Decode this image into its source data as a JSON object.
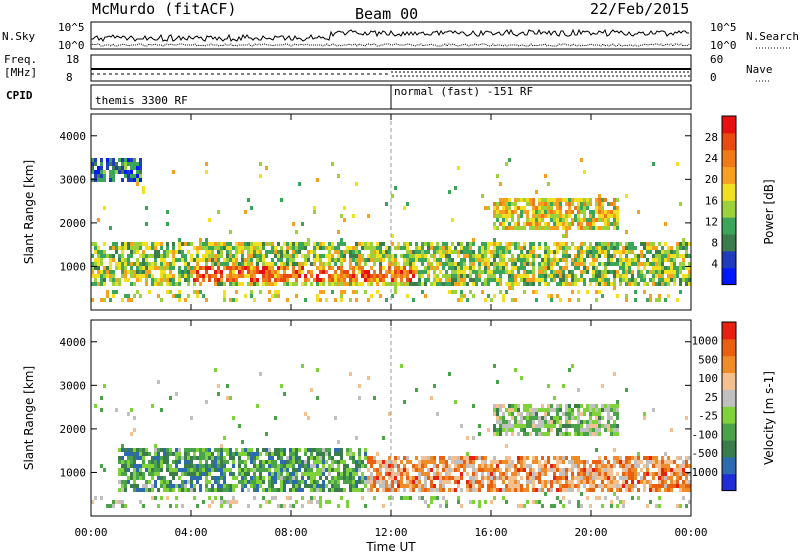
{
  "header": {
    "station": "McMurdo (fitACF)",
    "beam": "Beam 00",
    "date": "22/Feb/2015"
  },
  "strips": {
    "nsky": {
      "label": "N.Sky",
      "ticks": [
        "10^5",
        "10^0"
      ]
    },
    "nsearch": {
      "label": "N.Search",
      "ticks": [
        "10^5",
        "10^0"
      ]
    },
    "freq": {
      "label_top": "Freq.",
      "label_bottom": "[MHz]",
      "ticks": [
        "18",
        "8"
      ]
    },
    "nave": {
      "label": "Nave",
      "ticks": [
        "60",
        "0"
      ]
    },
    "cpid": {
      "label": "CPID",
      "segments": [
        "themis 3300 RF",
        "normal (fast) -151 RF"
      ]
    }
  },
  "colors": {
    "power_scale": [
      "#0018ff",
      "#1f3cbf",
      "#3a7d4a",
      "#3ba55a",
      "#9bd13a",
      "#f2e020",
      "#f7a020",
      "#f07a18",
      "#e84a10",
      "#e81010"
    ],
    "velocity_scale": [
      "#1f2ed8",
      "#2c6bb0",
      "#3a7d4a",
      "#4aa24a",
      "#7fd23a",
      "#c0c0c0",
      "#f5c090",
      "#f08c28",
      "#e86010",
      "#e82010"
    ]
  },
  "chart_data": [
    {
      "type": "heatmap",
      "name": "power",
      "ylabel": "Slant Range [km]",
      "ylim": [
        0,
        4500
      ],
      "yticks": [
        "1000",
        "2000",
        "3000",
        "4000"
      ],
      "xticks": [
        "00:00",
        "04:00",
        "08:00",
        "12:00",
        "16:00",
        "20:00",
        "00:00"
      ],
      "colorbar": {
        "label": "Power [dB]",
        "ticks": [
          "28",
          "24",
          "20",
          "16",
          "12",
          "8",
          "4"
        ]
      },
      "bands": [
        {
          "t": [
            0,
            24
          ],
          "range": [
            600,
            1600
          ],
          "level": 0.45
        },
        {
          "t": [
            4,
            13
          ],
          "range": [
            700,
            1100
          ],
          "level": 0.8
        },
        {
          "t": [
            16,
            21
          ],
          "range": [
            1900,
            2600
          ],
          "level": 0.55
        },
        {
          "t": [
            0,
            2
          ],
          "range": [
            3000,
            3500
          ],
          "level": 0.2
        }
      ]
    },
    {
      "type": "heatmap",
      "name": "velocity",
      "ylabel": "Slant Range [km]",
      "ylim": [
        0,
        4500
      ],
      "yticks": [
        "1000",
        "2000",
        "3000",
        "4000"
      ],
      "xticks": [
        "00:00",
        "04:00",
        "08:00",
        "12:00",
        "16:00",
        "20:00",
        "00:00"
      ],
      "xlabel": "Time UT",
      "colorbar": {
        "label": "Velocity [m s-1]",
        "ticks": [
          "1000",
          "500",
          "100",
          "25",
          "-25",
          "-100",
          "-500",
          "-1000"
        ]
      },
      "bands": [
        {
          "t": [
            1,
            11
          ],
          "range": [
            600,
            1600
          ],
          "level": 0.3
        },
        {
          "t": [
            11,
            24
          ],
          "range": [
            600,
            1400
          ],
          "level": 0.75
        },
        {
          "t": [
            16,
            21
          ],
          "range": [
            1900,
            2600
          ],
          "level": 0.45
        }
      ]
    }
  ]
}
